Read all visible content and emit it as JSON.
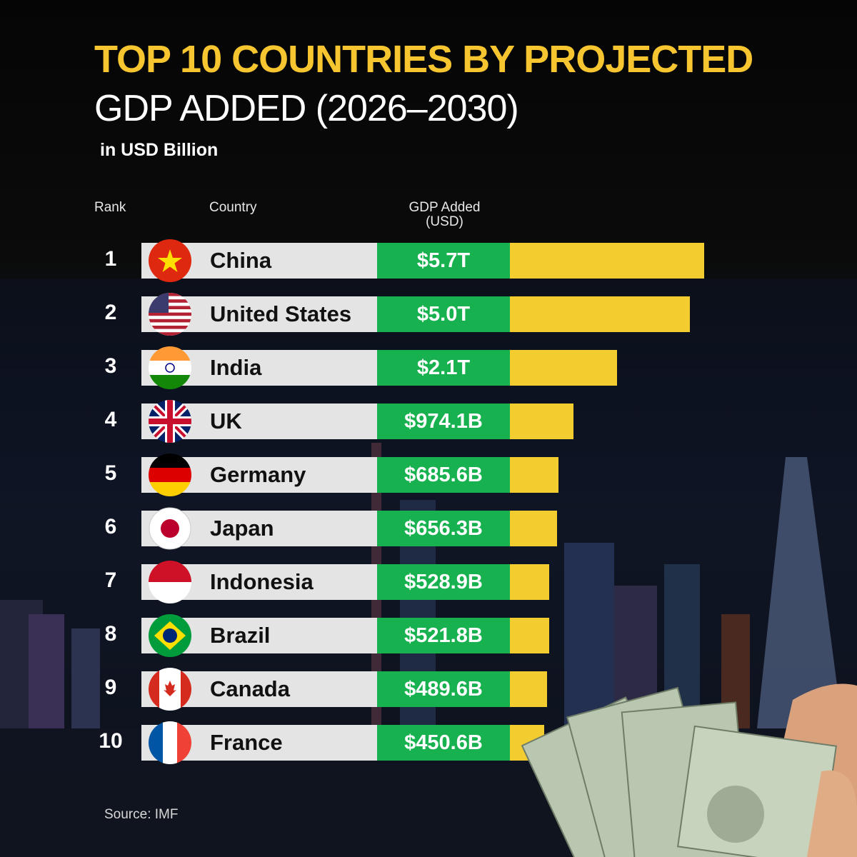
{
  "title_line1": "TOP 10 COUNTRIES BY PROJECTED",
  "title_line2": "GDP ADDED (2026–2030)",
  "subtitle": "in USD Billion",
  "headers": {
    "rank": "Rank",
    "country": "Country",
    "gdp_line1": "GDP Added",
    "gdp_line2": "(USD)"
  },
  "source": "Source: IMF",
  "colors": {
    "title_accent": "#f6c52f",
    "value_cell": "#18b14f",
    "bar": "#f3cd30",
    "name_cell": "#e4e4e4"
  },
  "chart_data": {
    "type": "bar",
    "orientation": "horizontal",
    "title": "TOP 10 COUNTRIES BY PROJECTED GDP ADDED (2026–2030)",
    "subtitle": "in USD Billion",
    "ylabel": "GDP Added (USD)",
    "rows": [
      {
        "rank": "1",
        "country": "China",
        "label": "$5.7T",
        "value": 5700,
        "flag": "china-flag-icon"
      },
      {
        "rank": "2",
        "country": "United States",
        "label": "$5.0T",
        "value": 5000,
        "flag": "us-flag-icon"
      },
      {
        "rank": "3",
        "country": "India",
        "label": "$2.1T",
        "value": 2100,
        "flag": "india-flag-icon"
      },
      {
        "rank": "4",
        "country": "UK",
        "label": "$974.1B",
        "value": 974.1,
        "flag": "uk-flag-icon"
      },
      {
        "rank": "5",
        "country": "Germany",
        "label": "$685.6B",
        "value": 685.6,
        "flag": "germany-flag-icon"
      },
      {
        "rank": "6",
        "country": "Japan",
        "label": "$656.3B",
        "value": 656.3,
        "flag": "japan-flag-icon"
      },
      {
        "rank": "7",
        "country": "Indonesia",
        "label": "$528.9B",
        "value": 528.9,
        "flag": "indonesia-flag-icon"
      },
      {
        "rank": "8",
        "country": "Brazil",
        "label": "$521.8B",
        "value": 521.8,
        "flag": "brazil-flag-icon"
      },
      {
        "rank": "9",
        "country": "Canada",
        "label": "$489.6B",
        "value": 489.6,
        "flag": "canada-flag-icon"
      },
      {
        "rank": "10",
        "country": "France",
        "label": "$450.6B",
        "value": 450.6,
        "flag": "france-flag-icon"
      }
    ]
  }
}
